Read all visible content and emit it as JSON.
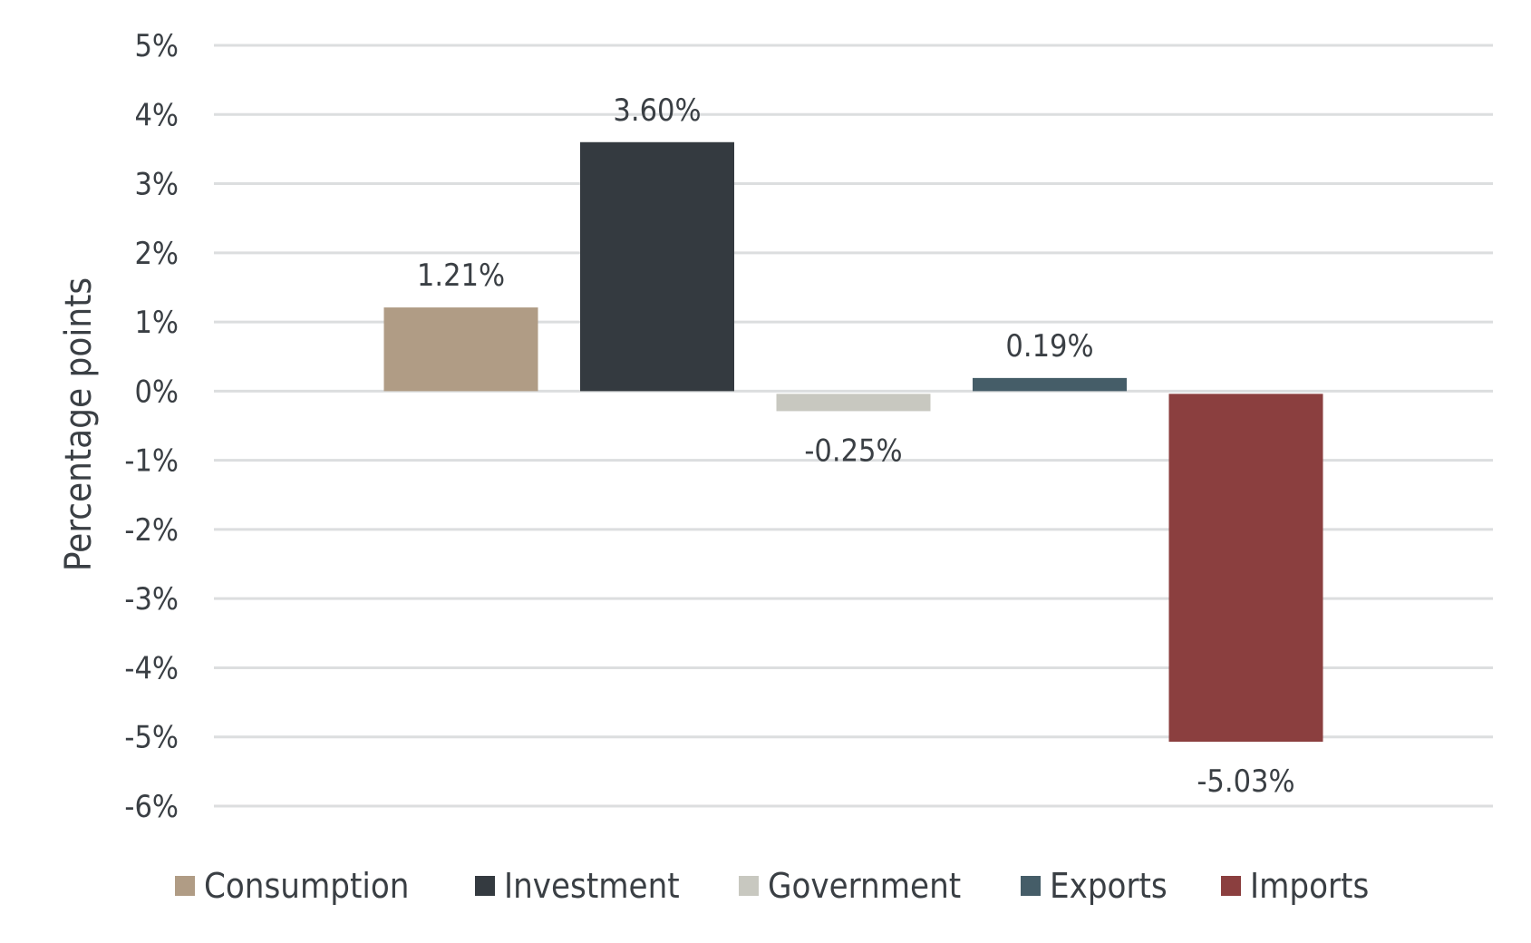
{
  "chart_data": {
    "type": "bar",
    "title": "",
    "xlabel": "",
    "ylabel": "Percentage points",
    "ylim": [
      -6,
      5
    ],
    "yticks": [
      "5%",
      "4%",
      "3%",
      "2%",
      "1%",
      "0%",
      "-1%",
      "-2%",
      "-3%",
      "-4%",
      "-5%",
      "-6%"
    ],
    "grid": true,
    "legend_position": "bottom",
    "categories": [
      "Consumption",
      "Investment",
      "Government",
      "Exports",
      "Imports"
    ],
    "values": [
      1.21,
      3.6,
      -0.25,
      0.19,
      -5.03
    ],
    "data_labels": [
      "1.21%",
      "3.60%",
      "-0.25%",
      "0.19%",
      "-5.03%"
    ],
    "colors": [
      "#b09c85",
      "#343a40",
      "#c8c8c0",
      "#455d68",
      "#8b3f3f"
    ]
  }
}
